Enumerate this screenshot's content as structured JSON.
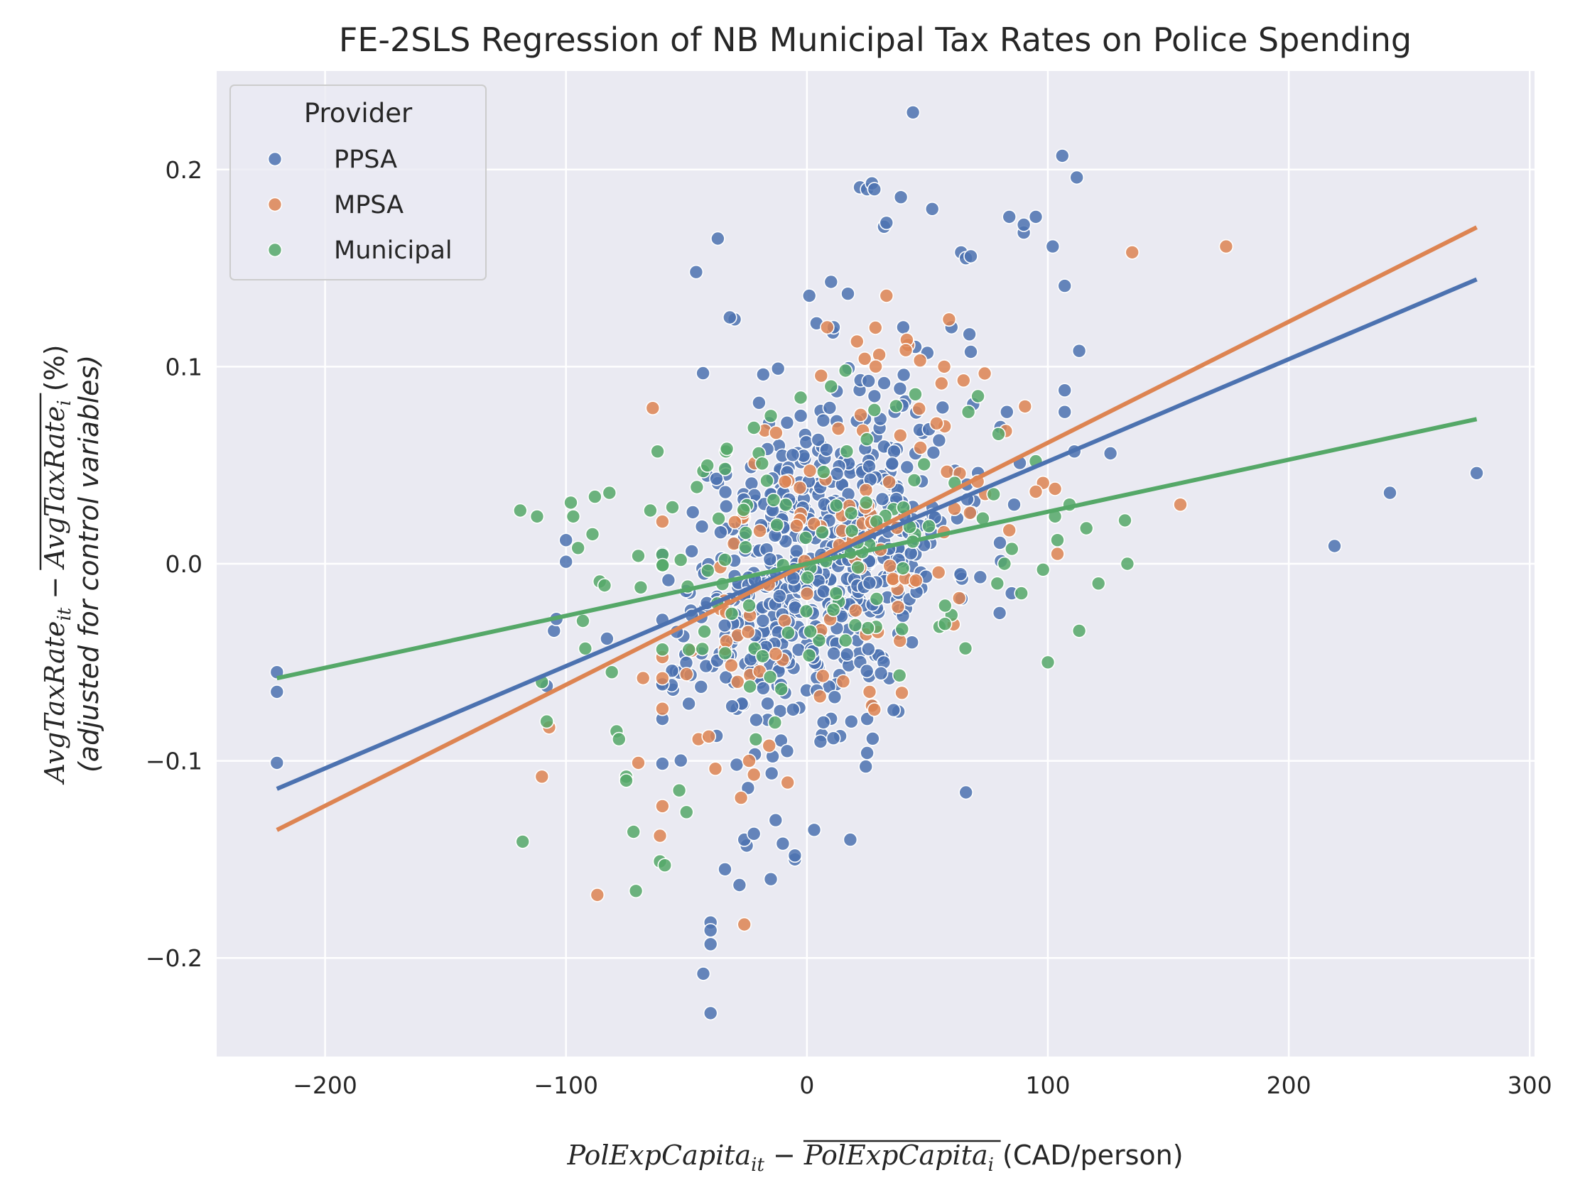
{
  "chart_data": {
    "type": "scatter",
    "title": "FE-2SLS Regression of NB Municipal Tax Rates on Police Spending",
    "xlabel": {
      "term1": "PolExpCapita",
      "sub1": "it",
      "minus": " − ",
      "term2": "PolExpCapita",
      "sub2": "i",
      "units": "  (CAD/person)"
    },
    "ylabel": {
      "term1": "AvgTaxRate",
      "sub1": "it",
      "minus": " − ",
      "term2": "AvgTaxRate",
      "sub2": "i",
      "units": "  (%)",
      "line2": "(adjusted for control variables)"
    },
    "xlim": [
      -245,
      302
    ],
    "ylim": [
      -0.25,
      0.25
    ],
    "x_ticks": [
      -200,
      -100,
      0,
      100,
      200,
      300
    ],
    "x_tick_labels": [
      "−200",
      "−100",
      "0",
      "100",
      "200",
      "300"
    ],
    "y_ticks": [
      -0.2,
      -0.1,
      0.0,
      0.1,
      0.2
    ],
    "y_tick_labels": [
      "−0.2",
      "−0.1",
      "0.0",
      "0.1",
      "0.2"
    ],
    "grid": true,
    "background": "#eaeaf2",
    "legend": {
      "title": "Provider",
      "placement": "top-left",
      "entries": [
        {
          "label": "PPSA",
          "color": "#4c72b0"
        },
        {
          "label": "MPSA",
          "color": "#dd8452"
        },
        {
          "label": "Municipal",
          "color": "#55a868"
        }
      ]
    },
    "series": [
      {
        "name": "PPSA",
        "color": "#4c72b0",
        "fit": {
          "slope": 0.000519,
          "intercept": 0.0,
          "x_range": [
            -220,
            278
          ]
        },
        "outliers": [
          [
            -220,
            -0.055
          ],
          [
            -220,
            -0.065
          ],
          [
            -220,
            -0.101
          ],
          [
            -108,
            -0.062
          ],
          [
            -105,
            -0.034
          ],
          [
            -104,
            -0.028
          ],
          [
            -100,
            0.001
          ],
          [
            -100,
            0.012
          ],
          [
            -83,
            -0.038
          ],
          [
            -46,
            0.148
          ],
          [
            -37,
            0.165
          ],
          [
            -40,
            -0.182
          ],
          [
            -40,
            -0.186
          ],
          [
            -40,
            -0.193
          ],
          [
            -43,
            -0.208
          ],
          [
            -40,
            -0.228
          ],
          [
            -28,
            -0.163
          ],
          [
            -34,
            -0.155
          ],
          [
            -30,
            0.124
          ],
          [
            -32,
            0.125
          ],
          [
            -12,
            0.099
          ],
          [
            1,
            0.136
          ],
          [
            4,
            0.122
          ],
          [
            10,
            0.143
          ],
          [
            17,
            0.137
          ],
          [
            22,
            0.191
          ],
          [
            25,
            0.19
          ],
          [
            27,
            0.193
          ],
          [
            28,
            0.19
          ],
          [
            32,
            0.171
          ],
          [
            33,
            0.173
          ],
          [
            39,
            0.186
          ],
          [
            44,
            0.229
          ],
          [
            52,
            0.18
          ],
          [
            64,
            0.158
          ],
          [
            66,
            0.155
          ],
          [
            68,
            0.156
          ],
          [
            84,
            0.176
          ],
          [
            90,
            0.168
          ],
          [
            90,
            0.172
          ],
          [
            95,
            0.176
          ],
          [
            102,
            0.161
          ],
          [
            106,
            0.207
          ],
          [
            107,
            0.141
          ],
          [
            112,
            0.196
          ],
          [
            113,
            0.108
          ],
          [
            107,
            0.088
          ],
          [
            107,
            0.077
          ],
          [
            111,
            0.057
          ],
          [
            126,
            0.056
          ],
          [
            219,
            0.009
          ],
          [
            242,
            0.036
          ],
          [
            278,
            0.046
          ],
          [
            66,
            -0.116
          ],
          [
            3,
            -0.135
          ],
          [
            -5,
            -0.15
          ],
          [
            -5,
            -0.148
          ],
          [
            -10,
            -0.142
          ],
          [
            18,
            -0.14
          ],
          [
            25,
            -0.096
          ],
          [
            -15,
            -0.16
          ],
          [
            -25,
            -0.143
          ],
          [
            -26,
            -0.14
          ],
          [
            -22,
            -0.137
          ],
          [
            83,
            0.077
          ],
          [
            86,
            0.03
          ],
          [
            80,
            -0.025
          ],
          [
            85,
            -0.015
          ],
          [
            60,
            0.12
          ],
          [
            45,
            0.11
          ],
          [
            50,
            0.107
          ]
        ],
        "cluster": {
          "count": 620,
          "x_center": 5,
          "x_sd": 27,
          "y_sd": 0.041,
          "seed": 11
        }
      },
      {
        "name": "MPSA",
        "color": "#dd8452",
        "fit": {
          "slope": 0.000614,
          "intercept": 0.0,
          "x_range": [
            -220,
            278
          ]
        },
        "outliers": [
          [
            -107,
            -0.083
          ],
          [
            -110,
            -0.108
          ],
          [
            -87,
            -0.168
          ],
          [
            -64,
            0.079
          ],
          [
            -61,
            -0.138
          ],
          [
            -60,
            -0.123
          ],
          [
            -70,
            -0.101
          ],
          [
            -68,
            -0.058
          ],
          [
            -36,
            -0.023
          ],
          [
            -26,
            -0.183
          ],
          [
            -24,
            -0.1
          ],
          [
            -22,
            -0.107
          ],
          [
            33,
            0.136
          ],
          [
            59,
            0.124
          ],
          [
            57,
            0.1
          ],
          [
            24,
            0.104
          ],
          [
            30,
            0.106
          ],
          [
            42,
            0.111
          ],
          [
            135,
            0.158
          ],
          [
            174,
            0.161
          ],
          [
            155,
            0.03
          ],
          [
            104,
            0.005
          ],
          [
            103,
            0.038
          ],
          [
            98,
            0.041
          ],
          [
            84,
            0.017
          ],
          [
            65,
            0.093
          ],
          [
            27,
            -0.072
          ],
          [
            28,
            -0.074
          ],
          [
            26,
            -0.065
          ],
          [
            -45,
            -0.089
          ],
          [
            -50,
            -0.056
          ],
          [
            -38,
            -0.104
          ],
          [
            -8,
            -0.111
          ]
        ],
        "cluster": {
          "count": 110,
          "x_center": 10,
          "x_sd": 35,
          "y_sd": 0.04,
          "seed": 23
        }
      },
      {
        "name": "Municipal",
        "color": "#55a868",
        "fit": {
          "slope": 0.000264,
          "intercept": 0.0,
          "x_range": [
            -220,
            278
          ]
        },
        "outliers": [
          [
            -119,
            0.027
          ],
          [
            -112,
            0.024
          ],
          [
            -118,
            -0.141
          ],
          [
            -110,
            -0.06
          ],
          [
            -108,
            -0.08
          ],
          [
            -98,
            0.031
          ],
          [
            -97,
            0.024
          ],
          [
            -95,
            0.008
          ],
          [
            -93,
            -0.029
          ],
          [
            -92,
            -0.043
          ],
          [
            -89,
            0.015
          ],
          [
            -88,
            0.034
          ],
          [
            -86,
            -0.009
          ],
          [
            -84,
            -0.011
          ],
          [
            -82,
            0.036
          ],
          [
            -81,
            -0.055
          ],
          [
            -79,
            -0.085
          ],
          [
            -78,
            -0.089
          ],
          [
            -75,
            -0.108
          ],
          [
            -75,
            -0.11
          ],
          [
            -72,
            -0.136
          ],
          [
            -71,
            -0.166
          ],
          [
            -70,
            0.004
          ],
          [
            -69,
            -0.012
          ],
          [
            -65,
            0.027
          ],
          [
            -62,
            0.057
          ],
          [
            -61,
            -0.151
          ],
          [
            -59,
            -0.153
          ],
          [
            -53,
            -0.115
          ],
          [
            -50,
            -0.126
          ],
          [
            -43,
            0.047
          ],
          [
            -34,
            0.002
          ],
          [
            -22,
            0.069
          ],
          [
            -20,
            0.056
          ],
          [
            -15,
            0.075
          ],
          [
            10,
            0.09
          ],
          [
            16,
            0.098
          ],
          [
            28,
            0.078
          ],
          [
            37,
            0.08
          ],
          [
            45,
            0.086
          ],
          [
            67,
            0.077
          ],
          [
            71,
            0.085
          ],
          [
            73,
            0.023
          ],
          [
            79,
            -0.01
          ],
          [
            82,
            0.0
          ],
          [
            89,
            -0.015
          ],
          [
            95,
            0.052
          ],
          [
            98,
            -0.003
          ],
          [
            100,
            -0.05
          ],
          [
            103,
            0.024
          ],
          [
            104,
            0.012
          ],
          [
            113,
            -0.034
          ],
          [
            116,
            0.018
          ],
          [
            121,
            -0.01
          ],
          [
            132,
            0.022
          ],
          [
            133,
            0.0
          ],
          [
            109,
            0.03
          ],
          [
            60,
            -0.026
          ],
          [
            55,
            -0.032
          ]
        ],
        "cluster": {
          "count": 90,
          "x_center": 5,
          "x_sd": 35,
          "y_sd": 0.035,
          "seed": 37
        }
      }
    ]
  }
}
